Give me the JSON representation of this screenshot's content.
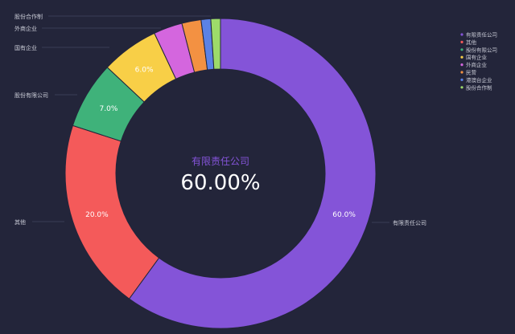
{
  "chart_data": {
    "type": "pie",
    "style": "donut",
    "center": {
      "category": "有限责任公司",
      "value_text": "60.00%"
    },
    "legend": {
      "placement": "top-right"
    },
    "slices": [
      {
        "name": "有限责任公司",
        "value": 60.0,
        "label": "60.0%",
        "color": "#8454d8"
      },
      {
        "name": "其他",
        "value": 20.0,
        "label": "20.0%",
        "color": "#f45a5a"
      },
      {
        "name": "股份有限公司",
        "value": 7.0,
        "label": "7.0%",
        "color": "#3fb27a"
      },
      {
        "name": "国有企业",
        "value": 6.0,
        "label": "6.0%",
        "color": "#f8cf47"
      },
      {
        "name": "外商企业",
        "value": 3.0,
        "label": "",
        "color": "#d466de"
      },
      {
        "name": "民营",
        "value": 2.0,
        "label": "",
        "color": "#f39142"
      },
      {
        "name": "港澳台企业",
        "value": 1.0,
        "label": "",
        "color": "#5b82e6"
      },
      {
        "name": "股份合作制",
        "value": 1.0,
        "label": "",
        "color": "#9ddb6a"
      }
    ],
    "outside_labels": [
      "有限责任公司",
      "其他",
      "股份有限公司",
      "国有企业",
      "外商企业",
      "股份合作制"
    ]
  },
  "colors": {
    "background": "#23253a",
    "center_category": "#8454d8",
    "center_value": "#ffffff",
    "outside_label": "#c9cbd6",
    "leader_line": "#3a3d55",
    "legend_text": "#c9cbd6"
  }
}
